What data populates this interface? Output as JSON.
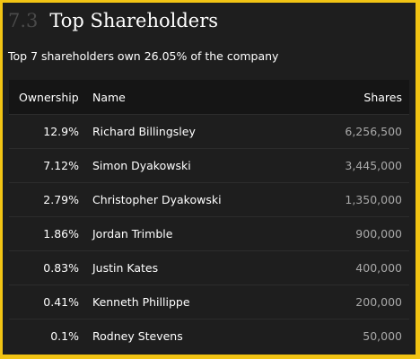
{
  "section": {
    "number": "7.3",
    "title": "Top Shareholders",
    "subtitle": "Top 7 shareholders own 26.05% of the company"
  },
  "table": {
    "headers": {
      "ownership": "Ownership",
      "name": "Name",
      "shares": "Shares"
    },
    "rows": [
      {
        "ownership": "12.9%",
        "name": "Richard Billingsley",
        "shares": "6,256,500"
      },
      {
        "ownership": "7.12%",
        "name": "Simon Dyakowski",
        "shares": "3,445,000"
      },
      {
        "ownership": "2.79%",
        "name": "Christopher Dyakowski",
        "shares": "1,350,000"
      },
      {
        "ownership": "1.86%",
        "name": "Jordan Trimble",
        "shares": "900,000"
      },
      {
        "ownership": "0.83%",
        "name": "Justin Kates",
        "shares": "400,000"
      },
      {
        "ownership": "0.41%",
        "name": "Kenneth Phillippe",
        "shares": "200,000"
      },
      {
        "ownership": "0.1%",
        "name": "Rodney Stevens",
        "shares": "50,000"
      }
    ]
  },
  "colors": {
    "frame_border": "#f2c414",
    "background": "#1e1e1e",
    "header_row": "#151515",
    "text": "#ffffff",
    "muted_text": "#a9a9a9",
    "section_number": "#4a4a4a"
  }
}
